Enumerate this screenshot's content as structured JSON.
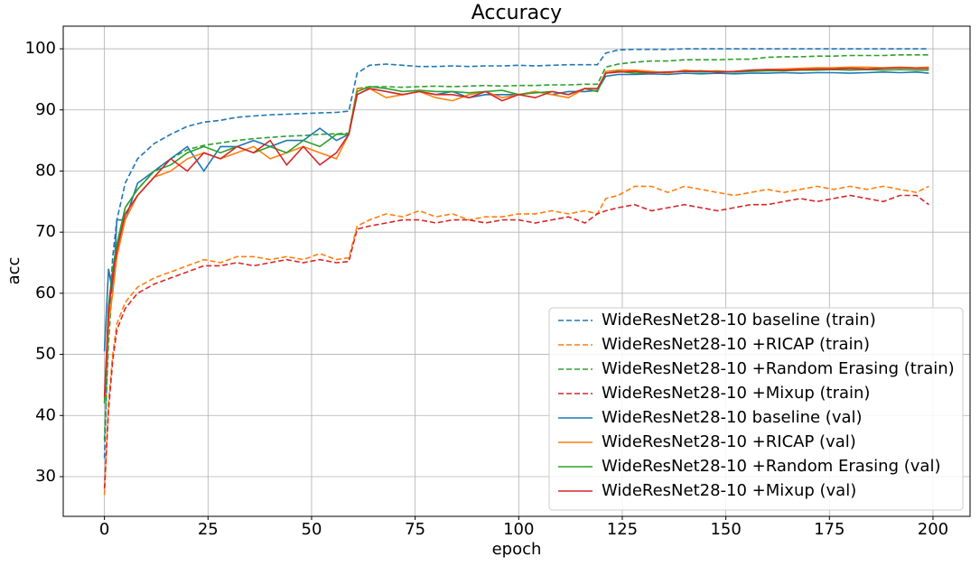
{
  "chart_data": {
    "type": "line",
    "title": "Accuracy",
    "xlabel": "epoch",
    "ylabel": "acc",
    "x": [
      0,
      1,
      2,
      3,
      5,
      8,
      12,
      16,
      20,
      24,
      28,
      32,
      36,
      40,
      44,
      48,
      52,
      56,
      59,
      61,
      64,
      68,
      72,
      76,
      80,
      84,
      88,
      92,
      96,
      100,
      104,
      108,
      112,
      116,
      119,
      121,
      124,
      128,
      132,
      136,
      140,
      144,
      148,
      152,
      156,
      160,
      164,
      168,
      172,
      176,
      180,
      184,
      188,
      192,
      196,
      199
    ],
    "series": [
      {
        "name": "WideResNet28-10 baseline (train)",
        "color": "#1f77b4",
        "linestyle": "dashed",
        "values": [
          33,
          55,
          66,
          72,
          78,
          82,
          84.5,
          86,
          87.3,
          88,
          88.3,
          88.8,
          89,
          89.2,
          89.3,
          89.4,
          89.5,
          89.6,
          89.8,
          96,
          97.3,
          97.5,
          97.3,
          97.1,
          97.1,
          97.2,
          97.1,
          97.2,
          97.2,
          97.3,
          97.2,
          97.3,
          97.4,
          97.4,
          97.4,
          99.3,
          99.8,
          99.9,
          99.9,
          99.9,
          100,
          100,
          100,
          100,
          100,
          100,
          100,
          100,
          100,
          100,
          100,
          100,
          100,
          100,
          100,
          100
        ]
      },
      {
        "name": "WideResNet28-10 +RICAP (train)",
        "color": "#ff7f0e",
        "linestyle": "dashed",
        "values": [
          27,
          42,
          50,
          55,
          58.5,
          61,
          62.5,
          63.5,
          64.5,
          65.5,
          65,
          66,
          66,
          65.5,
          66,
          65.5,
          66.5,
          65.5,
          65.8,
          71,
          72,
          73,
          72.5,
          73.5,
          72.5,
          73,
          72,
          72.5,
          72.5,
          73,
          73,
          73.5,
          73,
          73.5,
          73,
          75.5,
          76,
          77.5,
          77.5,
          76.5,
          77.5,
          77,
          76.5,
          76,
          76.5,
          77,
          76.5,
          77,
          77.5,
          77,
          77.5,
          77,
          77.5,
          77,
          76.5,
          77.5
        ]
      },
      {
        "name": "WideResNet28-10 +Random Erasing (train)",
        "color": "#2ca02c",
        "linestyle": "dashed",
        "values": [
          36,
          52,
          62,
          68,
          74,
          77,
          80,
          82,
          83.5,
          84.2,
          84.6,
          85,
          85.3,
          85.5,
          85.7,
          85.8,
          86,
          86.1,
          86.2,
          93.5,
          93.8,
          93.8,
          93.7,
          93.8,
          93.9,
          93.8,
          93.9,
          94,
          93.9,
          94,
          94,
          94.1,
          94.1,
          94.2,
          94.2,
          97,
          97.5,
          97.8,
          98,
          98,
          98.2,
          98.2,
          98.2,
          98.3,
          98.3,
          98.6,
          98.7,
          98.7,
          98.8,
          98.8,
          98.9,
          98.9,
          98.9,
          99,
          99,
          99
        ]
      },
      {
        "name": "WideResNet28-10 +Mixup (train)",
        "color": "#d62728",
        "linestyle": "dashed",
        "values": [
          28,
          41,
          49,
          54,
          57.5,
          60,
          61.5,
          62.5,
          63.5,
          64.5,
          64.5,
          65,
          64.5,
          65,
          65.5,
          65,
          65.5,
          65,
          65.2,
          70.5,
          71,
          71.5,
          72,
          72,
          71.5,
          72,
          72,
          71.5,
          72,
          72,
          71.5,
          72,
          72.5,
          71.5,
          73,
          73.5,
          74,
          74.5,
          73.5,
          74,
          74.5,
          74,
          73.5,
          74,
          74.5,
          74.5,
          75,
          75.5,
          75,
          75.5,
          76,
          75.5,
          75,
          76,
          76,
          74.5
        ]
      },
      {
        "name": "WideResNet28-10 baseline (val)",
        "color": "#1f77b4",
        "linestyle": "solid",
        "values": [
          50.5,
          64,
          60,
          72,
          72,
          78,
          80,
          82,
          84,
          80,
          84,
          84,
          85,
          84,
          85,
          85,
          87,
          85,
          86,
          92.5,
          93.5,
          93,
          92.5,
          93,
          92.5,
          93,
          92,
          92.5,
          92.5,
          92.5,
          93,
          92.5,
          93,
          93,
          93.2,
          95.5,
          95.8,
          95.8,
          95.9,
          95.8,
          96,
          95.9,
          96,
          95.9,
          96,
          96,
          96.1,
          96,
          96.1,
          96.1,
          96,
          96.1,
          96.2,
          96.1,
          96.2,
          96
        ]
      },
      {
        "name": "WideResNet28-10 +RICAP (val)",
        "color": "#ff7f0e",
        "linestyle": "solid",
        "values": [
          42,
          55,
          60,
          66,
          72,
          76,
          79,
          80,
          82,
          83,
          82,
          83,
          84,
          82,
          83,
          84,
          83,
          82,
          86,
          93.5,
          93.5,
          92,
          92.5,
          93,
          92,
          91.5,
          92.5,
          93,
          92,
          92.5,
          93,
          92.5,
          92,
          93.5,
          93,
          96.3,
          96.5,
          96.5,
          96.3,
          96,
          96.5,
          96.3,
          96.4,
          96.2,
          96.5,
          96.6,
          96.7,
          96.8,
          96.9,
          96.9,
          97,
          97,
          96.9,
          97,
          96.9,
          97
        ]
      },
      {
        "name": "WideResNet28-10 +Random Erasing (val)",
        "color": "#2ca02c",
        "linestyle": "solid",
        "values": [
          42,
          58,
          64,
          68,
          74,
          77,
          80,
          81,
          83,
          84,
          83,
          84,
          83,
          84,
          83,
          85,
          84,
          86,
          86,
          93,
          93.8,
          93.5,
          93,
          93.2,
          93,
          93,
          92.8,
          93,
          93.2,
          92.5,
          92.8,
          93,
          92.5,
          93.5,
          93,
          96,
          96.3,
          96,
          96.1,
          96.2,
          96.3,
          96.2,
          96.3,
          96.2,
          96.3,
          96.4,
          96.4,
          96.5,
          96.5,
          96.6,
          96.5,
          96.6,
          96.5,
          96.6,
          96.5,
          96.5
        ]
      },
      {
        "name": "WideResNet28-10 +Mixup (val)",
        "color": "#d62728",
        "linestyle": "solid",
        "values": [
          43,
          57,
          63,
          67,
          73,
          76,
          79,
          82,
          80,
          83,
          82,
          84,
          83,
          85,
          81,
          84,
          81,
          83,
          86,
          92.5,
          93.5,
          93,
          92.5,
          93,
          92.5,
          92.5,
          92,
          93,
          91.5,
          92.5,
          92,
          93,
          92.5,
          93.5,
          93.5,
          96,
          96.2,
          96.3,
          96.1,
          96.2,
          96.3,
          96.4,
          96.2,
          96.3,
          96.5,
          96.6,
          96.5,
          96.6,
          96.7,
          96.7,
          96.8,
          96.7,
          96.8,
          96.9,
          96.8,
          96.8
        ]
      }
    ],
    "xlim": [
      -9.95,
      208.95
    ],
    "xticks": [
      0,
      25,
      50,
      75,
      100,
      125,
      150,
      175,
      200
    ],
    "ylim": [
      23.5,
      103.7
    ],
    "yticks": [
      30,
      40,
      50,
      60,
      70,
      80,
      90,
      100
    ],
    "grid": true,
    "legend": "lower right"
  }
}
